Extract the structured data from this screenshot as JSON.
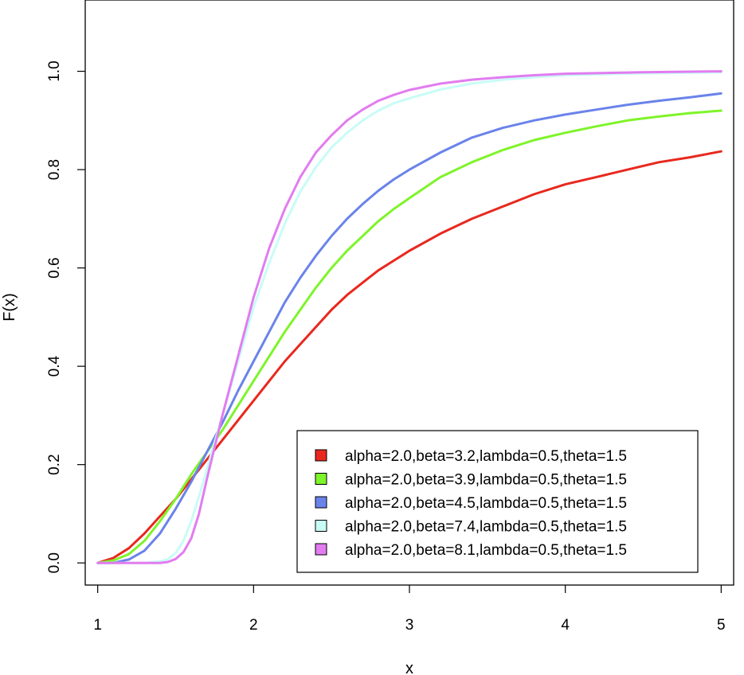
{
  "chart_data": {
    "type": "line",
    "xlabel": "x",
    "ylabel": "F(x)",
    "xlim": [
      0.92,
      5.08
    ],
    "ylim": [
      -0.045,
      1.145
    ],
    "xticks": [
      1,
      2,
      3,
      4,
      5
    ],
    "xtick_labels": [
      "1",
      "2",
      "3",
      "4",
      "5"
    ],
    "yticks": [
      0.0,
      0.2,
      0.4,
      0.6,
      0.8,
      1.0
    ],
    "ytick_labels": [
      "0.0",
      "0.2",
      "0.4",
      "0.6",
      "0.8",
      "1.0"
    ],
    "grid": false,
    "legend_position": "bottom-right",
    "series": [
      {
        "name": "alpha=2.0,beta=3.2,lambda=0.5,theta=1.5",
        "color": "#e8281e",
        "x": [
          1.0,
          1.1,
          1.2,
          1.3,
          1.4,
          1.5,
          1.6,
          1.7,
          1.8,
          1.9,
          2.0,
          2.1,
          2.2,
          2.3,
          2.4,
          2.5,
          2.6,
          2.7,
          2.8,
          2.9,
          3.0,
          3.2,
          3.4,
          3.6,
          3.8,
          4.0,
          4.2,
          4.4,
          4.6,
          4.8,
          5.0
        ],
        "y": [
          0.0,
          0.01,
          0.03,
          0.06,
          0.095,
          0.13,
          0.17,
          0.21,
          0.25,
          0.29,
          0.33,
          0.37,
          0.41,
          0.445,
          0.48,
          0.515,
          0.545,
          0.57,
          0.595,
          0.615,
          0.635,
          0.67,
          0.7,
          0.725,
          0.75,
          0.77,
          0.785,
          0.8,
          0.815,
          0.825,
          0.837
        ]
      },
      {
        "name": "alpha=2.0,beta=3.9,lambda=0.5,theta=1.5",
        "color": "#7ef42a",
        "x": [
          1.0,
          1.1,
          1.2,
          1.3,
          1.4,
          1.5,
          1.6,
          1.7,
          1.8,
          1.9,
          2.0,
          2.1,
          2.2,
          2.3,
          2.4,
          2.5,
          2.6,
          2.7,
          2.8,
          2.9,
          3.0,
          3.2,
          3.4,
          3.6,
          3.8,
          4.0,
          4.2,
          4.4,
          4.6,
          4.8,
          5.0
        ],
        "y": [
          0.0,
          0.005,
          0.018,
          0.045,
          0.085,
          0.13,
          0.18,
          0.225,
          0.27,
          0.32,
          0.37,
          0.42,
          0.47,
          0.515,
          0.56,
          0.6,
          0.635,
          0.665,
          0.695,
          0.72,
          0.742,
          0.785,
          0.815,
          0.84,
          0.86,
          0.875,
          0.888,
          0.9,
          0.908,
          0.915,
          0.92
        ]
      },
      {
        "name": "alpha=2.0,beta=4.5,lambda=0.5,theta=1.5",
        "color": "#6a83ea",
        "x": [
          1.0,
          1.1,
          1.2,
          1.3,
          1.4,
          1.5,
          1.6,
          1.7,
          1.8,
          1.9,
          2.0,
          2.1,
          2.2,
          2.3,
          2.4,
          2.5,
          2.6,
          2.7,
          2.8,
          2.9,
          3.0,
          3.2,
          3.4,
          3.6,
          3.8,
          4.0,
          4.2,
          4.4,
          4.6,
          4.8,
          5.0
        ],
        "y": [
          0.0,
          0.0,
          0.007,
          0.025,
          0.06,
          0.11,
          0.165,
          0.225,
          0.285,
          0.35,
          0.41,
          0.47,
          0.53,
          0.58,
          0.625,
          0.665,
          0.7,
          0.73,
          0.757,
          0.78,
          0.8,
          0.835,
          0.865,
          0.885,
          0.9,
          0.912,
          0.922,
          0.932,
          0.94,
          0.947,
          0.955
        ]
      },
      {
        "name": "alpha=2.0,beta=7.4,lambda=0.5,theta=1.5",
        "color": "#c8fcf6",
        "x": [
          1.0,
          1.1,
          1.2,
          1.3,
          1.4,
          1.45,
          1.5,
          1.55,
          1.6,
          1.65,
          1.7,
          1.8,
          1.9,
          2.0,
          2.1,
          2.2,
          2.3,
          2.4,
          2.5,
          2.6,
          2.7,
          2.8,
          2.9,
          3.0,
          3.2,
          3.4,
          3.6,
          3.8,
          4.0,
          4.5,
          5.0
        ],
        "y": [
          0.0,
          0.0,
          0.0,
          0.0,
          0.003,
          0.008,
          0.02,
          0.045,
          0.085,
          0.135,
          0.19,
          0.3,
          0.41,
          0.52,
          0.61,
          0.69,
          0.755,
          0.805,
          0.845,
          0.875,
          0.9,
          0.92,
          0.935,
          0.945,
          0.963,
          0.975,
          0.983,
          0.988,
          0.992,
          0.996,
          0.998
        ]
      },
      {
        "name": "alpha=2.0,beta=8.1,lambda=0.5,theta=1.5",
        "color": "#e27cf0",
        "x": [
          1.0,
          1.1,
          1.2,
          1.3,
          1.4,
          1.45,
          1.5,
          1.55,
          1.6,
          1.65,
          1.7,
          1.8,
          1.9,
          2.0,
          2.1,
          2.2,
          2.3,
          2.4,
          2.5,
          2.6,
          2.7,
          2.8,
          2.9,
          3.0,
          3.2,
          3.4,
          3.6,
          3.8,
          4.0,
          4.5,
          5.0
        ],
        "y": [
          0.0,
          0.0,
          0.0,
          0.0,
          0.0,
          0.002,
          0.008,
          0.022,
          0.05,
          0.1,
          0.17,
          0.3,
          0.42,
          0.54,
          0.64,
          0.72,
          0.785,
          0.835,
          0.87,
          0.9,
          0.922,
          0.94,
          0.952,
          0.962,
          0.975,
          0.983,
          0.988,
          0.992,
          0.995,
          0.998,
          1.0
        ]
      }
    ]
  }
}
